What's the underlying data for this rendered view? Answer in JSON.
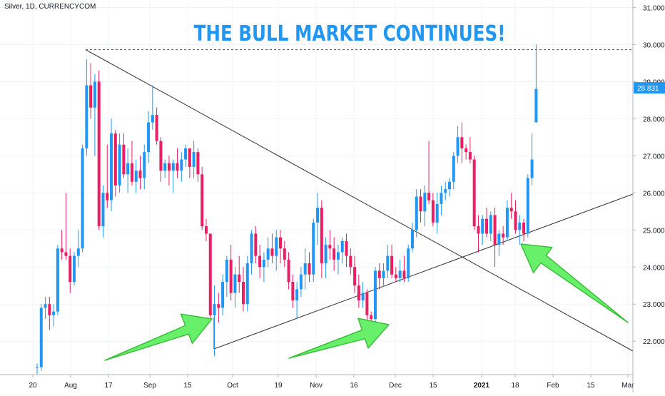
{
  "symbol": "Silver, 1D, CURRENCYCOM",
  "headline": "THE BULL MARKET CONTINUES!",
  "last_price_label": "28.831",
  "colors": {
    "up": "#2196f3",
    "down": "#e91e63",
    "arrow_fill": "#69f06b",
    "arrow_stroke": "#3cbf3c",
    "grid": "#f0f3fa",
    "axis_text": "#131722"
  },
  "icons": {
    "arrow": "green-up-right-arrow"
  },
  "chart_data": {
    "type": "candlestick",
    "title": "THE BULL MARKET CONTINUES!",
    "ylim": [
      21.1,
      31.2
    ],
    "y_ticks": [
      "22.000",
      "23.000",
      "24.000",
      "25.000",
      "26.000",
      "27.000",
      "28.000",
      "29.000",
      "30.000",
      "31.000"
    ],
    "x_tick_labels": [
      "20",
      "Aug",
      "17",
      "Sep",
      "15",
      "Oct",
      "19",
      "Nov",
      "16",
      "Dec",
      "15",
      "2021",
      "18",
      "Feb",
      "15",
      "Mar"
    ],
    "last_price": 28.831,
    "resistance_level": 29.86,
    "candles": [
      [
        21.3,
        21.4,
        21.1,
        21.3
      ],
      [
        21.3,
        23.0,
        21.2,
        22.9
      ],
      [
        22.9,
        23.2,
        22.6,
        23.0
      ],
      [
        23.0,
        23.2,
        22.3,
        22.7
      ],
      [
        22.7,
        23.0,
        22.4,
        22.8
      ],
      [
        22.8,
        24.6,
        22.7,
        24.5
      ],
      [
        24.5,
        25.0,
        24.2,
        24.4
      ],
      [
        24.4,
        26.0,
        24.2,
        24.3
      ],
      [
        24.3,
        24.5,
        23.3,
        23.6
      ],
      [
        23.6,
        24.4,
        23.5,
        24.3
      ],
      [
        24.3,
        25.0,
        24.0,
        24.5
      ],
      [
        24.5,
        27.3,
        24.4,
        27.2
      ],
      [
        27.2,
        29.6,
        27.0,
        28.9
      ],
      [
        28.9,
        29.5,
        28.0,
        28.3
      ],
      [
        28.3,
        29.2,
        27.0,
        29.0
      ],
      [
        29.0,
        29.3,
        25.0,
        25.1
      ],
      [
        25.1,
        26.2,
        24.8,
        26.0
      ],
      [
        26.0,
        27.3,
        25.6,
        25.8
      ],
      [
        25.8,
        28.0,
        25.5,
        27.6
      ],
      [
        27.6,
        27.7,
        25.9,
        26.2
      ],
      [
        26.2,
        27.6,
        26.0,
        27.3
      ],
      [
        27.3,
        27.6,
        26.4,
        26.5
      ],
      [
        26.5,
        27.2,
        26.0,
        26.8
      ],
      [
        26.8,
        27.4,
        26.2,
        26.3
      ],
      [
        26.3,
        26.9,
        26.0,
        26.6
      ],
      [
        26.6,
        27.0,
        26.1,
        26.4
      ],
      [
        26.4,
        27.3,
        26.1,
        27.1
      ],
      [
        27.1,
        28.2,
        26.8,
        27.9
      ],
      [
        27.9,
        28.9,
        27.7,
        28.1
      ],
      [
        28.1,
        28.3,
        27.3,
        27.4
      ],
      [
        27.4,
        27.5,
        26.3,
        26.6
      ],
      [
        26.6,
        26.9,
        26.4,
        26.8
      ],
      [
        26.8,
        27.0,
        26.2,
        26.6
      ],
      [
        26.6,
        26.9,
        26.0,
        26.8
      ],
      [
        26.8,
        27.2,
        26.4,
        26.6
      ],
      [
        26.6,
        27.1,
        26.3,
        26.9
      ],
      [
        26.9,
        27.3,
        26.7,
        27.2
      ],
      [
        27.2,
        27.2,
        26.4,
        26.7
      ],
      [
        26.7,
        27.4,
        26.4,
        27.1
      ],
      [
        27.1,
        27.2,
        26.3,
        26.5
      ],
      [
        26.5,
        26.7,
        25.0,
        25.1
      ],
      [
        25.1,
        25.3,
        24.7,
        24.9
      ],
      [
        24.9,
        24.9,
        22.6,
        22.7
      ],
      [
        22.7,
        23.5,
        21.6,
        23.0
      ],
      [
        23.0,
        23.3,
        22.5,
        22.9
      ],
      [
        22.9,
        23.8,
        22.7,
        23.6
      ],
      [
        23.6,
        24.3,
        23.2,
        24.2
      ],
      [
        24.2,
        24.6,
        23.1,
        23.3
      ],
      [
        23.3,
        24.0,
        22.9,
        23.8
      ],
      [
        23.8,
        24.3,
        23.3,
        23.6
      ],
      [
        23.6,
        24.0,
        22.8,
        23.0
      ],
      [
        23.0,
        24.3,
        22.8,
        24.1
      ],
      [
        24.1,
        25.0,
        23.8,
        24.9
      ],
      [
        24.9,
        25.1,
        24.1,
        24.3
      ],
      [
        24.3,
        24.6,
        23.7,
        24.0
      ],
      [
        24.0,
        24.4,
        23.6,
        24.2
      ],
      [
        24.2,
        24.8,
        24.0,
        24.5
      ],
      [
        24.5,
        24.9,
        24.1,
        24.3
      ],
      [
        24.3,
        25.0,
        23.9,
        24.8
      ],
      [
        24.8,
        25.0,
        24.1,
        24.5
      ],
      [
        24.5,
        24.7,
        24.0,
        24.2
      ],
      [
        24.2,
        24.4,
        23.4,
        23.6
      ],
      [
        23.6,
        23.8,
        22.9,
        23.1
      ],
      [
        23.1,
        23.6,
        22.6,
        23.4
      ],
      [
        23.4,
        24.0,
        23.2,
        23.8
      ],
      [
        23.8,
        24.5,
        23.4,
        24.1
      ],
      [
        24.1,
        24.4,
        23.6,
        23.8
      ],
      [
        23.8,
        25.3,
        23.6,
        25.2
      ],
      [
        25.2,
        26.0,
        24.6,
        25.6
      ],
      [
        25.6,
        25.8,
        23.7,
        24.1
      ],
      [
        24.1,
        24.8,
        23.7,
        24.6
      ],
      [
        24.6,
        25.0,
        24.2,
        24.5
      ],
      [
        24.5,
        24.8,
        23.9,
        24.2
      ],
      [
        24.2,
        24.6,
        23.8,
        24.4
      ],
      [
        24.4,
        24.8,
        24.1,
        24.7
      ],
      [
        24.7,
        24.9,
        24.0,
        24.3
      ],
      [
        24.3,
        24.5,
        23.8,
        24.0
      ],
      [
        24.0,
        24.3,
        23.3,
        23.5
      ],
      [
        23.5,
        23.8,
        22.9,
        23.1
      ],
      [
        23.1,
        23.6,
        22.9,
        23.3
      ],
      [
        23.3,
        23.4,
        22.5,
        22.7
      ],
      [
        22.7,
        22.8,
        21.9,
        22.6
      ],
      [
        22.6,
        24.0,
        22.5,
        23.9
      ],
      [
        23.9,
        24.1,
        23.4,
        23.7
      ],
      [
        23.7,
        24.1,
        23.5,
        23.9
      ],
      [
        23.9,
        24.6,
        23.7,
        24.3
      ],
      [
        24.3,
        24.6,
        23.7,
        23.8
      ],
      [
        23.8,
        24.0,
        23.6,
        23.7
      ],
      [
        23.7,
        24.2,
        23.6,
        23.9
      ],
      [
        23.9,
        24.3,
        23.6,
        23.7
      ],
      [
        23.7,
        24.6,
        23.6,
        24.5
      ],
      [
        24.5,
        25.2,
        24.4,
        25.0
      ],
      [
        25.0,
        26.1,
        24.8,
        25.9
      ],
      [
        25.9,
        26.1,
        25.2,
        25.5
      ],
      [
        25.5,
        26.2,
        25.1,
        26.0
      ],
      [
        26.0,
        27.4,
        25.7,
        25.8
      ],
      [
        25.8,
        26.0,
        25.1,
        25.2
      ],
      [
        25.2,
        26.0,
        24.9,
        25.7
      ],
      [
        25.7,
        26.2,
        25.4,
        26.0
      ],
      [
        26.0,
        26.3,
        25.8,
        26.1
      ],
      [
        26.1,
        26.4,
        25.9,
        26.3
      ],
      [
        26.3,
        27.1,
        26.1,
        27.0
      ],
      [
        27.0,
        27.8,
        26.8,
        27.5
      ],
      [
        27.5,
        27.9,
        26.8,
        27.2
      ],
      [
        27.2,
        27.3,
        26.9,
        27.1
      ],
      [
        27.1,
        27.5,
        26.8,
        26.9
      ],
      [
        26.9,
        27.0,
        25.0,
        25.1
      ],
      [
        25.1,
        25.4,
        24.4,
        24.9
      ],
      [
        24.9,
        25.4,
        24.6,
        25.3
      ],
      [
        25.3,
        25.6,
        24.8,
        24.9
      ],
      [
        24.9,
        25.5,
        24.7,
        25.4
      ],
      [
        25.4,
        25.6,
        24.0,
        24.6
      ],
      [
        24.6,
        25.0,
        24.3,
        24.9
      ],
      [
        24.9,
        25.1,
        24.6,
        24.8
      ],
      [
        24.8,
        25.8,
        24.7,
        25.6
      ],
      [
        25.6,
        26.0,
        25.3,
        25.5
      ],
      [
        25.5,
        25.8,
        24.9,
        25.0
      ],
      [
        25.0,
        25.4,
        24.6,
        25.2
      ],
      [
        25.2,
        25.3,
        24.7,
        24.9
      ],
      [
        24.9,
        26.5,
        24.8,
        26.4
      ],
      [
        26.4,
        27.6,
        26.2,
        26.9
      ],
      [
        27.9,
        30.0,
        27.9,
        28.8
      ]
    ]
  }
}
